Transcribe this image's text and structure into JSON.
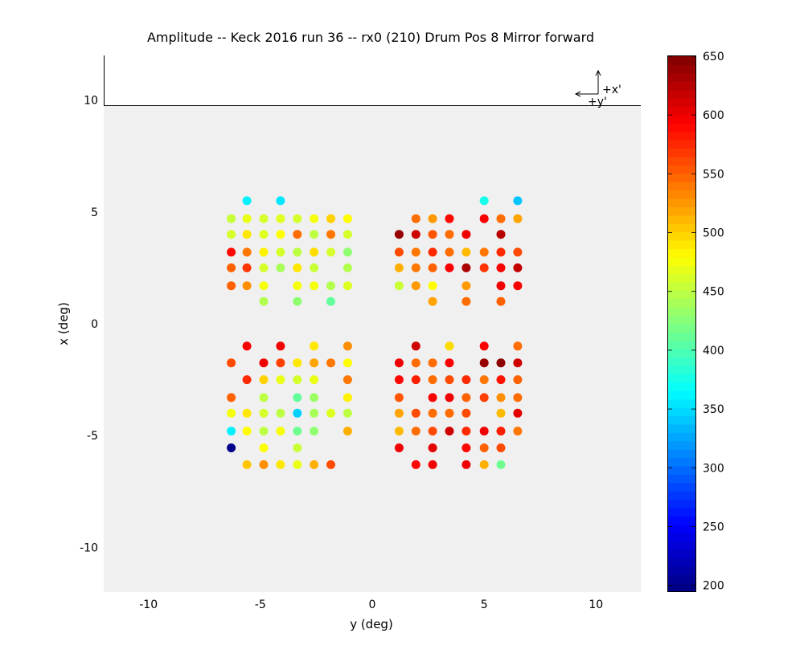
{
  "chart_data": {
    "type": "scatter",
    "title": "Amplitude -- Keck 2016 run 36 -- rx0 (210) Drum Pos 8 Mirror forward",
    "xlabel": "y (deg)",
    "ylabel": "x (deg)",
    "xlim": [
      -12,
      12
    ],
    "ylim": [
      -12,
      12
    ],
    "xticks": [
      -10,
      -5,
      0,
      5,
      10
    ],
    "yticks": [
      -10,
      -5,
      0,
      5,
      10
    ],
    "grid": false,
    "axes_background": "#f0f0f0",
    "orientation_indicator": {
      "x_label": "+x'",
      "y_label": "+y'"
    },
    "colorbar": {
      "colormap": "jet",
      "range": [
        195,
        650
      ],
      "ticks": [
        200,
        250,
        300,
        350,
        400,
        450,
        500,
        550,
        600,
        650
      ]
    },
    "points": [
      {
        "x": -5.6,
        "y": 5.5,
        "v": 360
      },
      {
        "x": -4.1,
        "y": 5.5,
        "v": 355
      },
      {
        "x": -6.3,
        "y": 4.7,
        "v": 455
      },
      {
        "x": -5.6,
        "y": 4.7,
        "v": 470
      },
      {
        "x": -4.85,
        "y": 4.7,
        "v": 460
      },
      {
        "x": -4.1,
        "y": 4.7,
        "v": 465
      },
      {
        "x": -3.35,
        "y": 4.7,
        "v": 460
      },
      {
        "x": -2.6,
        "y": 4.7,
        "v": 475
      },
      {
        "x": -1.85,
        "y": 4.7,
        "v": 500
      },
      {
        "x": -1.1,
        "y": 4.7,
        "v": 480
      },
      {
        "x": -6.3,
        "y": 4.0,
        "v": 460
      },
      {
        "x": -5.6,
        "y": 4.0,
        "v": 490
      },
      {
        "x": -4.85,
        "y": 4.0,
        "v": 465
      },
      {
        "x": -4.1,
        "y": 4.0,
        "v": 480
      },
      {
        "x": -3.35,
        "y": 4.0,
        "v": 545
      },
      {
        "x": -2.6,
        "y": 4.0,
        "v": 450
      },
      {
        "x": -1.85,
        "y": 4.0,
        "v": 540
      },
      {
        "x": -1.1,
        "y": 4.0,
        "v": 460
      },
      {
        "x": -6.3,
        "y": 3.2,
        "v": 590
      },
      {
        "x": -5.6,
        "y": 3.2,
        "v": 540
      },
      {
        "x": -4.85,
        "y": 3.2,
        "v": 485
      },
      {
        "x": -4.1,
        "y": 3.2,
        "v": 460
      },
      {
        "x": -3.35,
        "y": 3.2,
        "v": 450
      },
      {
        "x": -2.6,
        "y": 3.2,
        "v": 495
      },
      {
        "x": -1.85,
        "y": 3.2,
        "v": 460
      },
      {
        "x": -1.1,
        "y": 3.2,
        "v": 430
      },
      {
        "x": -6.3,
        "y": 2.5,
        "v": 550
      },
      {
        "x": -5.6,
        "y": 2.5,
        "v": 570
      },
      {
        "x": -4.85,
        "y": 2.5,
        "v": 460
      },
      {
        "x": -4.1,
        "y": 2.5,
        "v": 440
      },
      {
        "x": -3.35,
        "y": 2.5,
        "v": 490
      },
      {
        "x": -2.6,
        "y": 2.5,
        "v": 455
      },
      {
        "x": -1.1,
        "y": 2.5,
        "v": 445
      },
      {
        "x": -6.3,
        "y": 1.7,
        "v": 550
      },
      {
        "x": -5.6,
        "y": 1.7,
        "v": 530
      },
      {
        "x": -4.85,
        "y": 1.7,
        "v": 475
      },
      {
        "x": -3.35,
        "y": 1.7,
        "v": 475
      },
      {
        "x": -2.6,
        "y": 1.7,
        "v": 475
      },
      {
        "x": -1.85,
        "y": 1.7,
        "v": 445
      },
      {
        "x": -1.1,
        "y": 1.7,
        "v": 465
      },
      {
        "x": -4.85,
        "y": 1.0,
        "v": 445
      },
      {
        "x": -3.35,
        "y": 1.0,
        "v": 430
      },
      {
        "x": -1.85,
        "y": 1.0,
        "v": 410
      },
      {
        "x": 1.2,
        "y": 4.7,
        "v": null
      },
      {
        "x": 1.95,
        "y": 4.7,
        "v": 545
      },
      {
        "x": 2.7,
        "y": 4.7,
        "v": 525
      },
      {
        "x": 3.45,
        "y": 4.7,
        "v": 590
      },
      {
        "x": 5.0,
        "y": 4.7,
        "v": 595
      },
      {
        "x": 5.75,
        "y": 4.7,
        "v": 545
      },
      {
        "x": 6.5,
        "y": 4.7,
        "v": 520
      },
      {
        "x": 5.0,
        "y": 5.5,
        "v": 375
      },
      {
        "x": 6.5,
        "y": 5.5,
        "v": 340
      },
      {
        "x": 1.2,
        "y": 4.0,
        "v": 640
      },
      {
        "x": 1.95,
        "y": 4.0,
        "v": 615
      },
      {
        "x": 2.7,
        "y": 4.0,
        "v": 555
      },
      {
        "x": 3.45,
        "y": 4.0,
        "v": 545
      },
      {
        "x": 4.2,
        "y": 4.0,
        "v": 600
      },
      {
        "x": 5.75,
        "y": 4.0,
        "v": 625
      },
      {
        "x": 1.2,
        "y": 3.2,
        "v": 560
      },
      {
        "x": 1.95,
        "y": 3.2,
        "v": 540
      },
      {
        "x": 2.7,
        "y": 3.2,
        "v": 575
      },
      {
        "x": 3.45,
        "y": 3.2,
        "v": 545
      },
      {
        "x": 4.2,
        "y": 3.2,
        "v": 510
      },
      {
        "x": 5.0,
        "y": 3.2,
        "v": 540
      },
      {
        "x": 5.75,
        "y": 3.2,
        "v": 575
      },
      {
        "x": 6.5,
        "y": 3.2,
        "v": 560
      },
      {
        "x": 1.2,
        "y": 2.5,
        "v": 515
      },
      {
        "x": 1.95,
        "y": 2.5,
        "v": 540
      },
      {
        "x": 2.7,
        "y": 2.5,
        "v": 550
      },
      {
        "x": 3.45,
        "y": 2.5,
        "v": 595
      },
      {
        "x": 4.2,
        "y": 2.5,
        "v": 630
      },
      {
        "x": 5.0,
        "y": 2.5,
        "v": 570
      },
      {
        "x": 5.75,
        "y": 2.5,
        "v": 595
      },
      {
        "x": 6.5,
        "y": 2.5,
        "v": 620
      },
      {
        "x": 1.2,
        "y": 1.7,
        "v": 455
      },
      {
        "x": 1.95,
        "y": 1.7,
        "v": 525
      },
      {
        "x": 2.7,
        "y": 1.7,
        "v": 480
      },
      {
        "x": 4.2,
        "y": 1.7,
        "v": 525
      },
      {
        "x": 5.75,
        "y": 1.7,
        "v": 600
      },
      {
        "x": 6.5,
        "y": 1.7,
        "v": 595
      },
      {
        "x": 2.7,
        "y": 1.0,
        "v": 520
      },
      {
        "x": 4.2,
        "y": 1.0,
        "v": 545
      },
      {
        "x": 5.75,
        "y": 1.0,
        "v": 550
      },
      {
        "x": -5.6,
        "y": -1.0,
        "v": 595
      },
      {
        "x": -4.1,
        "y": -1.0,
        "v": 600
      },
      {
        "x": -2.6,
        "y": -1.0,
        "v": 490
      },
      {
        "x": -1.1,
        "y": -1.0,
        "v": 530
      },
      {
        "x": -6.3,
        "y": -1.75,
        "v": 560
      },
      {
        "x": -4.85,
        "y": -1.75,
        "v": 600
      },
      {
        "x": -4.1,
        "y": -1.75,
        "v": 565
      },
      {
        "x": -3.35,
        "y": -1.75,
        "v": 490
      },
      {
        "x": -2.6,
        "y": -1.75,
        "v": 520
      },
      {
        "x": -1.85,
        "y": -1.75,
        "v": 540
      },
      {
        "x": -1.1,
        "y": -1.75,
        "v": 480
      },
      {
        "x": -5.6,
        "y": -2.5,
        "v": 575
      },
      {
        "x": -4.85,
        "y": -2.5,
        "v": 500
      },
      {
        "x": -4.1,
        "y": -2.5,
        "v": 470
      },
      {
        "x": -3.35,
        "y": -2.5,
        "v": 460
      },
      {
        "x": -2.6,
        "y": -2.5,
        "v": 470
      },
      {
        "x": -1.1,
        "y": -2.5,
        "v": 540
      },
      {
        "x": -6.3,
        "y": -3.3,
        "v": 550
      },
      {
        "x": -4.85,
        "y": -3.3,
        "v": 450
      },
      {
        "x": -3.35,
        "y": -3.3,
        "v": 410
      },
      {
        "x": -2.6,
        "y": -3.3,
        "v": 435
      },
      {
        "x": -1.1,
        "y": -3.3,
        "v": 485
      },
      {
        "x": -6.3,
        "y": -4.0,
        "v": 475
      },
      {
        "x": -5.6,
        "y": -4.0,
        "v": 490
      },
      {
        "x": -4.85,
        "y": -4.0,
        "v": 460
      },
      {
        "x": -4.1,
        "y": -4.0,
        "v": 450
      },
      {
        "x": -3.35,
        "y": -4.0,
        "v": 345
      },
      {
        "x": -2.6,
        "y": -4.0,
        "v": 440
      },
      {
        "x": -1.85,
        "y": -4.0,
        "v": 465
      },
      {
        "x": -1.1,
        "y": -4.0,
        "v": 450
      },
      {
        "x": -6.3,
        "y": -4.8,
        "v": 360
      },
      {
        "x": -5.6,
        "y": -4.8,
        "v": 480
      },
      {
        "x": -4.85,
        "y": -4.8,
        "v": 450
      },
      {
        "x": -4.1,
        "y": -4.8,
        "v": 475
      },
      {
        "x": -3.35,
        "y": -4.8,
        "v": 415
      },
      {
        "x": -2.6,
        "y": -4.8,
        "v": 430
      },
      {
        "x": -1.1,
        "y": -4.8,
        "v": 515
      },
      {
        "x": -6.3,
        "y": -5.55,
        "v": 200
      },
      {
        "x": -4.85,
        "y": -5.55,
        "v": 480
      },
      {
        "x": -3.35,
        "y": -5.55,
        "v": 455
      },
      {
        "x": -5.6,
        "y": -6.3,
        "v": 505
      },
      {
        "x": -4.85,
        "y": -6.3,
        "v": 530
      },
      {
        "x": -4.1,
        "y": -6.3,
        "v": 490
      },
      {
        "x": -3.35,
        "y": -6.3,
        "v": 470
      },
      {
        "x": -2.6,
        "y": -6.3,
        "v": 515
      },
      {
        "x": -1.85,
        "y": -6.3,
        "v": 560
      },
      {
        "x": 1.95,
        "y": -1.0,
        "v": 615
      },
      {
        "x": 3.45,
        "y": -1.0,
        "v": 495
      },
      {
        "x": 5.0,
        "y": -1.0,
        "v": 595
      },
      {
        "x": 6.5,
        "y": -1.0,
        "v": 545
      },
      {
        "x": 1.2,
        "y": -1.75,
        "v": 600
      },
      {
        "x": 1.95,
        "y": -1.75,
        "v": 545
      },
      {
        "x": 2.7,
        "y": -1.75,
        "v": 545
      },
      {
        "x": 3.45,
        "y": -1.75,
        "v": 595
      },
      {
        "x": 5.0,
        "y": -1.75,
        "v": 640
      },
      {
        "x": 5.75,
        "y": -1.75,
        "v": 645
      },
      {
        "x": 6.5,
        "y": -1.75,
        "v": 615
      },
      {
        "x": 1.2,
        "y": -2.5,
        "v": 590
      },
      {
        "x": 1.95,
        "y": -2.5,
        "v": 580
      },
      {
        "x": 2.7,
        "y": -2.5,
        "v": 545
      },
      {
        "x": 3.45,
        "y": -2.5,
        "v": 560
      },
      {
        "x": 4.2,
        "y": -2.5,
        "v": 575
      },
      {
        "x": 5.0,
        "y": -2.5,
        "v": 540
      },
      {
        "x": 5.75,
        "y": -2.5,
        "v": 585
      },
      {
        "x": 6.5,
        "y": -2.5,
        "v": 550
      },
      {
        "x": 1.2,
        "y": -3.3,
        "v": 555
      },
      {
        "x": 2.7,
        "y": -3.3,
        "v": 595
      },
      {
        "x": 3.45,
        "y": -3.3,
        "v": 600
      },
      {
        "x": 4.2,
        "y": -3.3,
        "v": 550
      },
      {
        "x": 5.0,
        "y": -3.3,
        "v": 565
      },
      {
        "x": 5.75,
        "y": -3.3,
        "v": 530
      },
      {
        "x": 6.5,
        "y": -3.3,
        "v": 545
      },
      {
        "x": 1.2,
        "y": -4.0,
        "v": 520
      },
      {
        "x": 1.95,
        "y": -4.0,
        "v": 560
      },
      {
        "x": 2.7,
        "y": -4.0,
        "v": 545
      },
      {
        "x": 3.45,
        "y": -4.0,
        "v": 545
      },
      {
        "x": 4.2,
        "y": -4.0,
        "v": 560
      },
      {
        "x": 5.75,
        "y": -4.0,
        "v": 510
      },
      {
        "x": 6.5,
        "y": -4.0,
        "v": 605
      },
      {
        "x": 1.2,
        "y": -4.8,
        "v": 510
      },
      {
        "x": 1.95,
        "y": -4.8,
        "v": 545
      },
      {
        "x": 2.7,
        "y": -4.8,
        "v": 560
      },
      {
        "x": 3.45,
        "y": -4.8,
        "v": 615
      },
      {
        "x": 4.2,
        "y": -4.8,
        "v": 575
      },
      {
        "x": 5.0,
        "y": -4.8,
        "v": 600
      },
      {
        "x": 5.75,
        "y": -4.8,
        "v": 580
      },
      {
        "x": 6.5,
        "y": -4.8,
        "v": 540
      },
      {
        "x": 1.2,
        "y": -5.55,
        "v": 600
      },
      {
        "x": 2.7,
        "y": -5.55,
        "v": 605
      },
      {
        "x": 4.2,
        "y": -5.55,
        "v": 590
      },
      {
        "x": 5.0,
        "y": -5.55,
        "v": 550
      },
      {
        "x": 5.75,
        "y": -5.55,
        "v": 560
      },
      {
        "x": 1.95,
        "y": -6.3,
        "v": 590
      },
      {
        "x": 2.7,
        "y": -6.3,
        "v": 600
      },
      {
        "x": 4.2,
        "y": -6.3,
        "v": 600
      },
      {
        "x": 5.0,
        "y": -6.3,
        "v": 515
      },
      {
        "x": 5.75,
        "y": -6.3,
        "v": 415
      }
    ]
  }
}
